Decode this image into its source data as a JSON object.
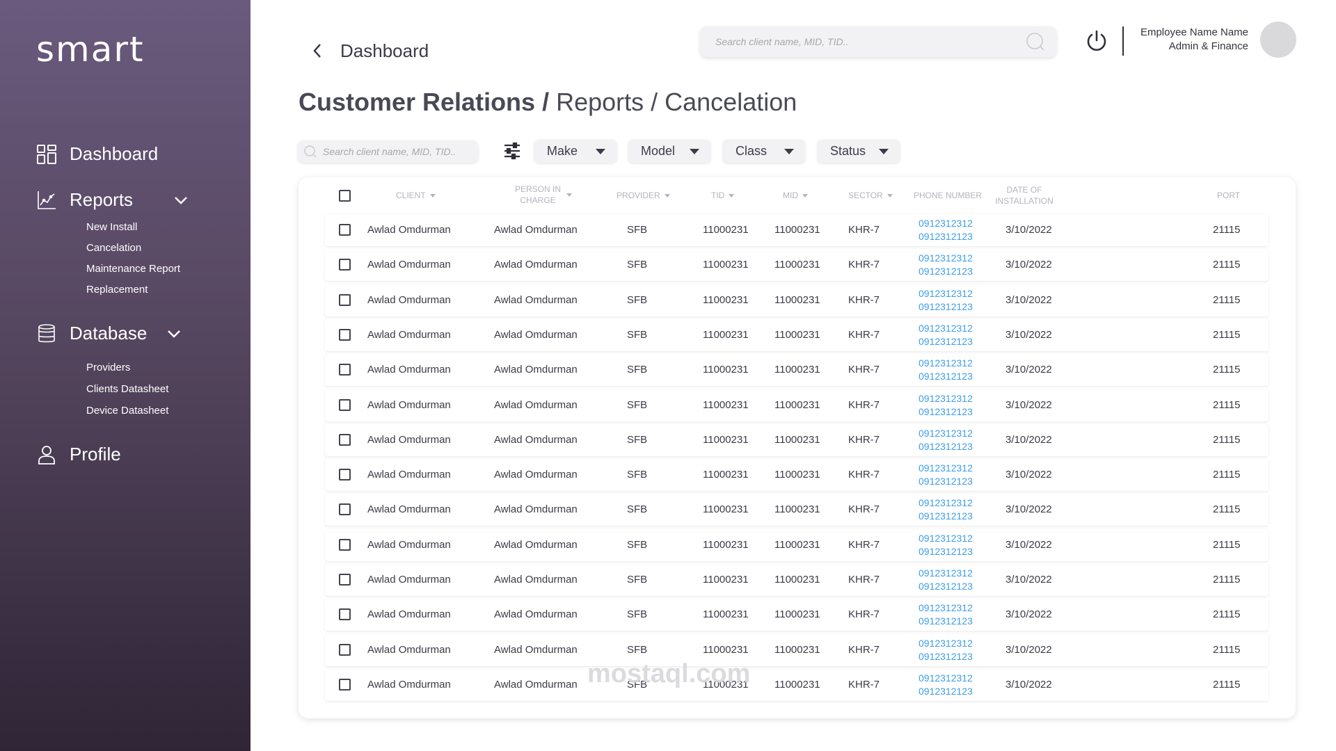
{
  "sidebar": {
    "logo": "smart",
    "dashboard": "Dashboard",
    "reports": {
      "label": "Reports",
      "items": [
        "New Install",
        "Cancelation",
        "Maintenance Report",
        "Replacement"
      ]
    },
    "database": {
      "label": "Database",
      "items": [
        "Providers",
        "Clients Datasheet",
        "Device Datasheet"
      ]
    },
    "profile": "Profile"
  },
  "header": {
    "back_title": "Dashboard",
    "search_placeholder": "Search client name, MID, TID..",
    "user_name": "Employee Name Name",
    "user_role": "Admin & Finance"
  },
  "page": {
    "title_strong": "Customer Relations /",
    "title_rest": " Reports / Cancelation"
  },
  "filters": {
    "search_placeholder": "Search client name, MID, TID..",
    "dropdowns": [
      "Make",
      "Model",
      "Class",
      "Status"
    ]
  },
  "table": {
    "columns": [
      "CLIENT",
      "PERSON IN CHARGE",
      "PROVIDER",
      "TID",
      "MID",
      "SECTOR",
      "PHONE NUMBER",
      "DATE OF INSTALLATION",
      "PORT"
    ],
    "rows": [
      {
        "client": "Awlad Omdurman",
        "person": "Awlad Omdurman",
        "provider": "SFB",
        "tid": "11000231",
        "mid": "11000231",
        "sector": "KHR-7",
        "phone1": "0912312312",
        "phone2": "0912312123",
        "date": "3/10/2022",
        "port": "21115"
      },
      {
        "client": "Awlad Omdurman",
        "person": "Awlad Omdurman",
        "provider": "SFB",
        "tid": "11000231",
        "mid": "11000231",
        "sector": "KHR-7",
        "phone1": "0912312312",
        "phone2": "0912312123",
        "date": "3/10/2022",
        "port": "21115"
      },
      {
        "client": "Awlad Omdurman",
        "person": "Awlad Omdurman",
        "provider": "SFB",
        "tid": "11000231",
        "mid": "11000231",
        "sector": "KHR-7",
        "phone1": "0912312312",
        "phone2": "0912312123",
        "date": "3/10/2022",
        "port": "21115"
      },
      {
        "client": "Awlad Omdurman",
        "person": "Awlad Omdurman",
        "provider": "SFB",
        "tid": "11000231",
        "mid": "11000231",
        "sector": "KHR-7",
        "phone1": "0912312312",
        "phone2": "0912312123",
        "date": "3/10/2022",
        "port": "21115"
      },
      {
        "client": "Awlad Omdurman",
        "person": "Awlad Omdurman",
        "provider": "SFB",
        "tid": "11000231",
        "mid": "11000231",
        "sector": "KHR-7",
        "phone1": "0912312312",
        "phone2": "0912312123",
        "date": "3/10/2022",
        "port": "21115"
      },
      {
        "client": "Awlad Omdurman",
        "person": "Awlad Omdurman",
        "provider": "SFB",
        "tid": "11000231",
        "mid": "11000231",
        "sector": "KHR-7",
        "phone1": "0912312312",
        "phone2": "0912312123",
        "date": "3/10/2022",
        "port": "21115"
      },
      {
        "client": "Awlad Omdurman",
        "person": "Awlad Omdurman",
        "provider": "SFB",
        "tid": "11000231",
        "mid": "11000231",
        "sector": "KHR-7",
        "phone1": "0912312312",
        "phone2": "0912312123",
        "date": "3/10/2022",
        "port": "21115"
      },
      {
        "client": "Awlad Omdurman",
        "person": "Awlad Omdurman",
        "provider": "SFB",
        "tid": "11000231",
        "mid": "11000231",
        "sector": "KHR-7",
        "phone1": "0912312312",
        "phone2": "0912312123",
        "date": "3/10/2022",
        "port": "21115"
      },
      {
        "client": "Awlad Omdurman",
        "person": "Awlad Omdurman",
        "provider": "SFB",
        "tid": "11000231",
        "mid": "11000231",
        "sector": "KHR-7",
        "phone1": "0912312312",
        "phone2": "0912312123",
        "date": "3/10/2022",
        "port": "21115"
      },
      {
        "client": "Awlad Omdurman",
        "person": "Awlad Omdurman",
        "provider": "SFB",
        "tid": "11000231",
        "mid": "11000231",
        "sector": "KHR-7",
        "phone1": "0912312312",
        "phone2": "0912312123",
        "date": "3/10/2022",
        "port": "21115"
      },
      {
        "client": "Awlad Omdurman",
        "person": "Awlad Omdurman",
        "provider": "SFB",
        "tid": "11000231",
        "mid": "11000231",
        "sector": "KHR-7",
        "phone1": "0912312312",
        "phone2": "0912312123",
        "date": "3/10/2022",
        "port": "21115"
      },
      {
        "client": "Awlad Omdurman",
        "person": "Awlad Omdurman",
        "provider": "SFB",
        "tid": "11000231",
        "mid": "11000231",
        "sector": "KHR-7",
        "phone1": "0912312312",
        "phone2": "0912312123",
        "date": "3/10/2022",
        "port": "21115"
      },
      {
        "client": "Awlad Omdurman",
        "person": "Awlad Omdurman",
        "provider": "SFB",
        "tid": "11000231",
        "mid": "11000231",
        "sector": "KHR-7",
        "phone1": "0912312312",
        "phone2": "0912312123",
        "date": "3/10/2022",
        "port": "21115"
      },
      {
        "client": "Awlad Omdurman",
        "person": "Awlad Omdurman",
        "provider": "SFB",
        "tid": "11000231",
        "mid": "11000231",
        "sector": "KHR-7",
        "phone1": "0912312312",
        "phone2": "0912312123",
        "date": "3/10/2022",
        "port": "21115"
      }
    ]
  },
  "watermark": "mostaql.com",
  "icons": {
    "dashboard": "grid-icon",
    "reports": "line-chart-icon",
    "database": "database-icon",
    "profile": "user-icon",
    "back": "chevron-left-icon",
    "search": "search-icon",
    "power": "power-icon",
    "filter": "sliders-icon"
  },
  "colors": {
    "accent_link": "#3d9de6",
    "sidebar_top": "#6a5a7e",
    "sidebar_bottom": "#2f2536"
  }
}
